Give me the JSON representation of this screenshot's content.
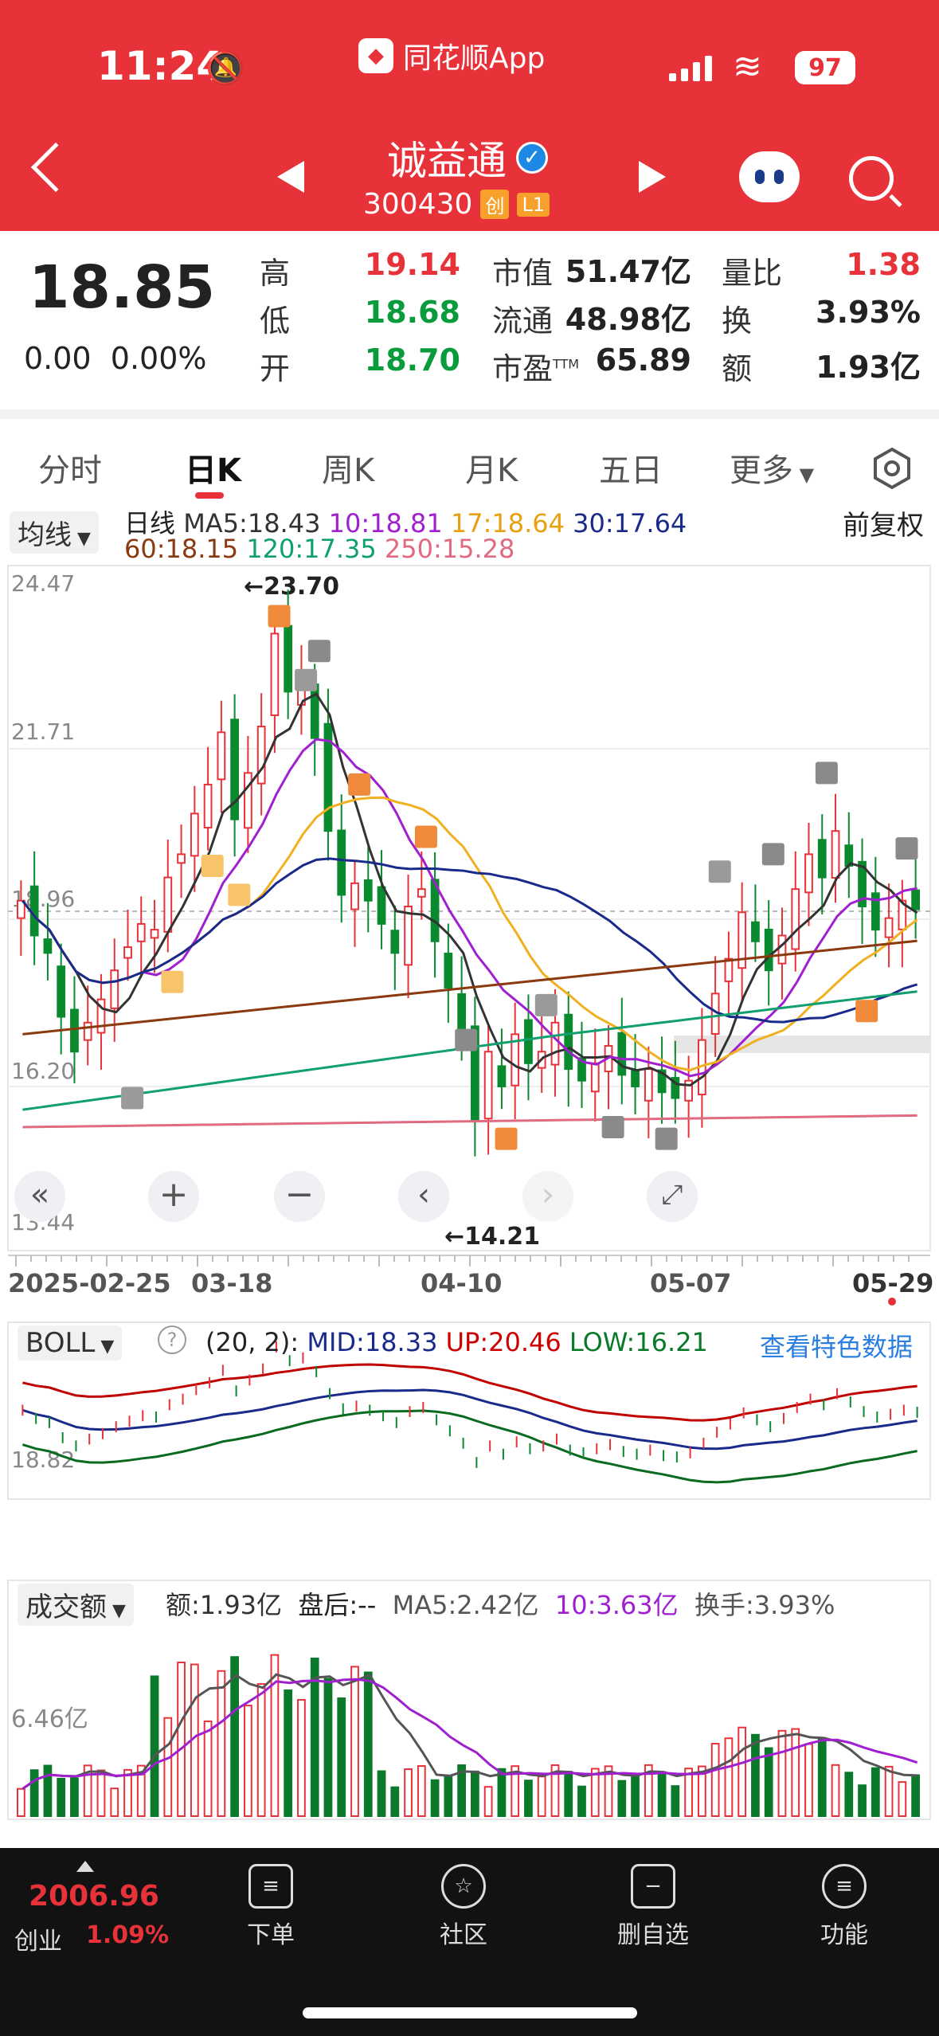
{
  "status": {
    "time": "11:24",
    "app_name": "同花顺App",
    "battery": "97"
  },
  "header": {
    "stock_name": "诚益通",
    "stock_code": "300430",
    "tag_board": "创",
    "tag_level": "L1"
  },
  "quote": {
    "price": "18.85",
    "change": "0.00",
    "change_pct": "0.00%",
    "high_label": "高",
    "high": "19.14",
    "low_label": "低",
    "low": "18.68",
    "open_label": "开",
    "open": "18.70",
    "mktcap_label": "市值",
    "mktcap": "51.47亿",
    "float_label": "流通",
    "float": "48.98亿",
    "pe_label": "市盈",
    "pe_sup": "TTM",
    "pe": "65.89",
    "volratio_label": "量比",
    "volratio": "1.38",
    "turnover_label": "换",
    "turnover": "3.93%",
    "amount_label": "额",
    "amount": "1.93亿"
  },
  "tabs": [
    "分时",
    "日K",
    "周K",
    "月K",
    "五日",
    "更多"
  ],
  "kline": {
    "selector": "均线",
    "period": "日线",
    "ma5": "MA5:18.43",
    "ma10": "10:18.81",
    "ma17": "17:18.64",
    "ma30": "30:17.64",
    "ma60": "60:18.15",
    "ma120": "120:17.35",
    "ma250": "250:15.28",
    "adjust": "前复权",
    "y_ticks": [
      "24.47",
      "21.71",
      "18.96",
      "16.20",
      "13.44"
    ],
    "high_mark": "←23.70",
    "low_mark": "←14.21",
    "dates": [
      "2025-02-25",
      "03-18",
      "04-10",
      "05-07",
      "05-29"
    ]
  },
  "boll": {
    "selector": "BOLL",
    "help": "?",
    "params": "(20, 2):",
    "mid": "MID:18.33",
    "up": "UP:20.46",
    "low": "LOW:16.21",
    "link": "查看特色数据",
    "y_tick": "18.82"
  },
  "volume": {
    "selector": "成交额",
    "amount": "额:1.93亿",
    "after": "盘后:--",
    "ma5": "MA5:2.42亿",
    "ma10": "10:3.63亿",
    "turnover": "换手:3.93%",
    "y_tick": "6.46亿"
  },
  "bottombar": {
    "index_value": "2006.96",
    "index_name": "创业",
    "index_change": "1.09%",
    "order": "下单",
    "community": "社区",
    "remove": "删自选",
    "functions": "功能"
  },
  "colors": {
    "accent": "#e8323a",
    "down": "#0a8a2e",
    "ma5": "#333333",
    "ma10": "#a020d0",
    "ma17": "#f0b020",
    "ma30": "#1a2a8a",
    "ma60": "#8b3a10",
    "ma120": "#10a070",
    "ma250": "#e06a80"
  }
}
